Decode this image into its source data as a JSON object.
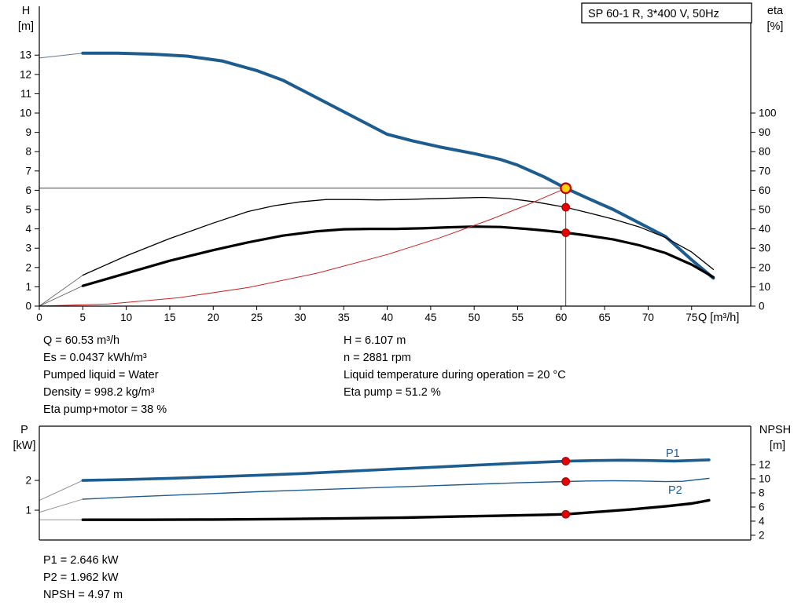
{
  "colors": {
    "curve_blue": "#1d5c8f",
    "black": "#000000",
    "red": "#cc2222",
    "dot_red": "#e60000",
    "op_fill": "#ffd200",
    "op_ring": "#c00000",
    "guide": "#444444"
  },
  "info_top": {
    "left": [
      "Q = 60.53 m³/h",
      "Es = 0.0437 kWh/m³",
      "Pumped liquid = Water",
      "Density = 998.2 kg/m³",
      "Eta pump+motor = 38 %"
    ],
    "right": [
      "H = 6.107 m",
      "n = 2881 rpm",
      "Liquid temperature during operation = 20 °C",
      "Eta pump = 51.2 %"
    ]
  },
  "info_bottom": [
    "P1 = 2.646 kW",
    "P2 = 1.962 kW",
    "NPSH = 4.97 m"
  ],
  "chart_data": [
    {
      "type": "line",
      "title": "SP 60-1 R, 3*400 V, 50Hz",
      "x_axis": {
        "label": "Q [m³/h]",
        "min": 0,
        "max": 81.8,
        "ticks": [
          0,
          5,
          10,
          15,
          20,
          25,
          30,
          35,
          40,
          45,
          50,
          55,
          60,
          65,
          70,
          75
        ]
      },
      "y_left": {
        "label": "H",
        "unit": "[m]",
        "min": 0,
        "max": 15.53,
        "ticks": [
          0,
          1,
          2,
          3,
          4,
          5,
          6,
          7,
          8,
          9,
          10,
          11,
          12,
          13
        ]
      },
      "y_right": {
        "label": "eta",
        "unit": "[%]",
        "min": 0,
        "max": 155.3,
        "ticks": [
          0,
          10,
          20,
          30,
          40,
          50,
          60,
          70,
          80,
          90,
          100
        ]
      },
      "series": [
        {
          "name": "H",
          "axis": "left",
          "color": "blue",
          "width": 4,
          "points": [
            [
              5,
              13.1
            ],
            [
              9,
              13.1
            ],
            [
              13,
              13.05
            ],
            [
              17,
              12.95
            ],
            [
              21,
              12.7
            ],
            [
              25,
              12.2
            ],
            [
              28,
              11.7
            ],
            [
              31,
              11.0
            ],
            [
              34,
              10.3
            ],
            [
              37,
              9.6
            ],
            [
              40,
              8.9
            ],
            [
              43,
              8.55
            ],
            [
              46,
              8.25
            ],
            [
              50,
              7.9
            ],
            [
              53,
              7.6
            ],
            [
              55,
              7.3
            ],
            [
              58,
              6.7
            ],
            [
              60.53,
              6.107
            ],
            [
              63,
              5.6
            ],
            [
              66,
              5.0
            ],
            [
              69,
              4.3
            ],
            [
              72,
              3.6
            ],
            [
              75,
              2.4
            ],
            [
              77.5,
              1.45
            ]
          ]
        },
        {
          "name": "Eta pump",
          "axis": "right",
          "color": "black",
          "width": 1.3,
          "points": [
            [
              5,
              16
            ],
            [
              10,
              26
            ],
            [
              15,
              35
            ],
            [
              20,
              43
            ],
            [
              24,
              49
            ],
            [
              27,
              52
            ],
            [
              30,
              54
            ],
            [
              33,
              55.2
            ],
            [
              36,
              55.2
            ],
            [
              39,
              55
            ],
            [
              42,
              55.2
            ],
            [
              45,
              55.6
            ],
            [
              48,
              56
            ],
            [
              51,
              56.3
            ],
            [
              54,
              55.7
            ],
            [
              57,
              54
            ],
            [
              60.53,
              51.2
            ],
            [
              63,
              48.5
            ],
            [
              66,
              45
            ],
            [
              69,
              41
            ],
            [
              72,
              35.5
            ],
            [
              75,
              28
            ],
            [
              77.5,
              19
            ]
          ]
        },
        {
          "name": "Eta pump+motor",
          "axis": "right",
          "color": "black",
          "width": 3.2,
          "points": [
            [
              5,
              10.5
            ],
            [
              10,
              17
            ],
            [
              15,
              23.5
            ],
            [
              20,
              29
            ],
            [
              24,
              33
            ],
            [
              28,
              36.5
            ],
            [
              32,
              38.8
            ],
            [
              35,
              39.8
            ],
            [
              38,
              40
            ],
            [
              41,
              40
            ],
            [
              44,
              40.3
            ],
            [
              47,
              40.8
            ],
            [
              50,
              41.2
            ],
            [
              53,
              41
            ],
            [
              56,
              40
            ],
            [
              58,
              39.2
            ],
            [
              60.53,
              38
            ],
            [
              63,
              36.6
            ],
            [
              66,
              34.5
            ],
            [
              69,
              31.5
            ],
            [
              72,
              27.5
            ],
            [
              75,
              21.5
            ],
            [
              77.5,
              15
            ]
          ]
        },
        {
          "name": "System curve",
          "axis": "left",
          "color": "red",
          "width": 1,
          "points": [
            [
              0,
              0
            ],
            [
              8,
              0.11
            ],
            [
              16,
              0.43
            ],
            [
              24,
              0.96
            ],
            [
              32,
              1.71
            ],
            [
              40,
              2.67
            ],
            [
              46,
              3.53
            ],
            [
              52,
              4.51
            ],
            [
              56,
              5.23
            ],
            [
              60.53,
              6.107
            ]
          ]
        }
      ],
      "lead_lines": [
        {
          "axis": "left",
          "color": "#5a7a9a",
          "width": 1,
          "from": [
            0,
            12.85
          ],
          "to": [
            5,
            13.1
          ]
        },
        {
          "axis": "right",
          "color": "#555555",
          "width": 0.8,
          "from": [
            0,
            0
          ],
          "to": [
            5,
            16
          ]
        },
        {
          "axis": "right",
          "color": "#555555",
          "width": 0.8,
          "from": [
            0,
            0
          ],
          "to": [
            5,
            10.5
          ]
        }
      ],
      "crosshair": {
        "q": 60.53,
        "h": 6.107
      },
      "dots": [
        {
          "axis": "left",
          "q": 60.53,
          "v": 6.107,
          "style": "op"
        },
        {
          "axis": "right",
          "q": 60.53,
          "v": 51.2,
          "style": "red"
        },
        {
          "axis": "right",
          "q": 60.53,
          "v": 38,
          "style": "red"
        }
      ]
    },
    {
      "type": "line",
      "border_top": true,
      "x_axis": {
        "label": "",
        "min": 0,
        "max": 81.8,
        "ticks": []
      },
      "y_left": {
        "label": "P",
        "unit": "[kW]",
        "min": 0,
        "max": 3.82,
        "ticks": [
          1,
          2
        ]
      },
      "y_right": {
        "label": "NPSH",
        "unit": "[m]",
        "min": 1.33,
        "max": 17.44,
        "ticks": [
          2,
          4,
          6,
          8,
          10,
          12
        ]
      },
      "series": [
        {
          "name": "P1",
          "axis": "left",
          "color": "blue",
          "width": 3.6,
          "points": [
            [
              5,
              2.0
            ],
            [
              10,
              2.03
            ],
            [
              15,
              2.07
            ],
            [
              20,
              2.12
            ],
            [
              25,
              2.17
            ],
            [
              30,
              2.23
            ],
            [
              35,
              2.3
            ],
            [
              40,
              2.37
            ],
            [
              45,
              2.44
            ],
            [
              50,
              2.51
            ],
            [
              55,
              2.58
            ],
            [
              60.53,
              2.646
            ],
            [
              64,
              2.67
            ],
            [
              67,
              2.68
            ],
            [
              70,
              2.67
            ],
            [
              73,
              2.65
            ],
            [
              77,
              2.69
            ]
          ]
        },
        {
          "name": "P2",
          "axis": "left",
          "color": "blue",
          "width": 1.4,
          "points": [
            [
              5,
              1.37
            ],
            [
              10,
              1.44
            ],
            [
              15,
              1.5
            ],
            [
              20,
              1.56
            ],
            [
              25,
              1.62
            ],
            [
              30,
              1.67
            ],
            [
              35,
              1.72
            ],
            [
              40,
              1.77
            ],
            [
              45,
              1.82
            ],
            [
              50,
              1.87
            ],
            [
              55,
              1.92
            ],
            [
              60.53,
              1.962
            ],
            [
              63,
              1.98
            ],
            [
              66,
              1.99
            ],
            [
              69,
              1.98
            ],
            [
              72,
              1.96
            ],
            [
              74,
              1.97
            ],
            [
              77,
              2.07
            ]
          ]
        },
        {
          "name": "NPSH",
          "axis": "right",
          "color": "black",
          "width": 3.4,
          "points": [
            [
              5,
              4.2
            ],
            [
              12,
              4.2
            ],
            [
              20,
              4.23
            ],
            [
              28,
              4.3
            ],
            [
              35,
              4.4
            ],
            [
              42,
              4.5
            ],
            [
              48,
              4.65
            ],
            [
              54,
              4.8
            ],
            [
              58,
              4.9
            ],
            [
              60.53,
              4.97
            ],
            [
              64,
              5.3
            ],
            [
              68,
              5.65
            ],
            [
              72,
              6.1
            ],
            [
              75,
              6.5
            ],
            [
              77,
              6.95
            ]
          ]
        }
      ],
      "lead_lines": [
        {
          "axis": "left",
          "color": "#888888",
          "width": 0.9,
          "from": [
            0,
            1.33
          ],
          "to": [
            5,
            2.0
          ]
        },
        {
          "axis": "left",
          "color": "#888888",
          "width": 0.9,
          "from": [
            0,
            0.93
          ],
          "to": [
            5,
            1.37
          ]
        },
        {
          "axis": "right",
          "color": "#888888",
          "width": 0.9,
          "from": [
            0,
            4.2
          ],
          "to": [
            5,
            4.2
          ]
        }
      ],
      "dots": [
        {
          "axis": "left",
          "q": 60.53,
          "v": 2.646,
          "style": "red"
        },
        {
          "axis": "left",
          "q": 60.53,
          "v": 1.962,
          "style": "red"
        },
        {
          "axis": "right",
          "q": 60.53,
          "v": 4.97,
          "style": "red"
        }
      ],
      "series_labels": [
        {
          "text": "P1",
          "q": 72,
          "v": 2.92
        },
        {
          "text": "P2",
          "q": 72.3,
          "v": 1.63
        }
      ]
    }
  ]
}
